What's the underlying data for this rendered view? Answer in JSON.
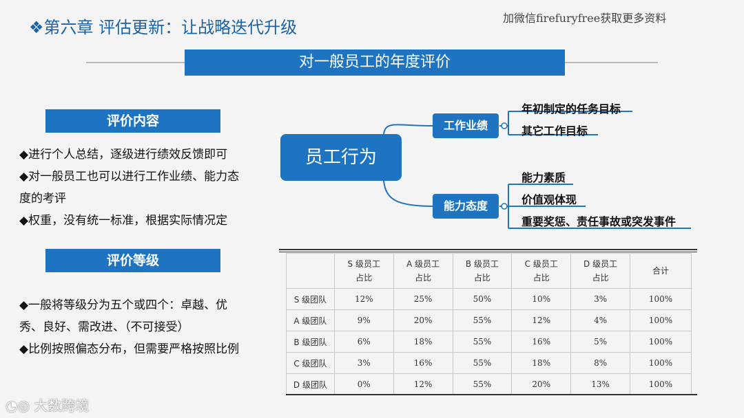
{
  "header": {
    "chapter_title": "❖第六章   评估更新：让战略迭代升级",
    "top_watermark": "加微信firefuryfree获取更多资料"
  },
  "slide_title": "对一般员工的年度评价",
  "content_section": {
    "heading": "评价内容",
    "bullets": [
      "◆进行个人总结，逐级进行绩效反馈即可",
      "◆对一般员工也可以进行工作业绩、能力态度的考评",
      "◆权重，没有统一标准，根据实际情况定"
    ]
  },
  "grade_section": {
    "heading": "评价等级",
    "bullets": [
      "◆一般将等级分为五个或四个：卓越、优秀、良好、需改进、（不可接受）",
      "◆比例按照偏态分布，但需要严格按照比例"
    ]
  },
  "mind_map": {
    "root": "员工行为",
    "branches": [
      {
        "label": "工作业绩",
        "leaves": [
          "年初制定的任务目标",
          "其它工作目标"
        ]
      },
      {
        "label": "能力态度",
        "leaves": [
          "能力素质",
          "价值观体现",
          "重要奖惩、责任事故或突发事件"
        ]
      }
    ]
  },
  "ratio_table": {
    "headers": [
      [
        "",
        ""
      ],
      [
        "S 级员工",
        "占比"
      ],
      [
        "A 级员工",
        "占比"
      ],
      [
        "B 级员工",
        "占比"
      ],
      [
        "C 级员工",
        "占比"
      ],
      [
        "D 级员工",
        "占比"
      ],
      [
        "合计",
        ""
      ]
    ],
    "rows": [
      [
        "S 级团队",
        "12%",
        "25%",
        "50%",
        "10%",
        "3%",
        "100%"
      ],
      [
        "A 级团队",
        "9%",
        "20%",
        "55%",
        "12%",
        "4%",
        "100%"
      ],
      [
        "B 级团队",
        "6%",
        "18%",
        "55%",
        "16%",
        "5%",
        "100%"
      ],
      [
        "C 级团队",
        "3%",
        "16%",
        "55%",
        "18%",
        "8%",
        "100%"
      ],
      [
        "D 级团队",
        "0%",
        "12%",
        "55%",
        "20%",
        "13%",
        "100%"
      ]
    ]
  },
  "footer": {
    "logo_text": "大数跨境"
  },
  "colors": {
    "accent_blue": "#1f74c1",
    "background": "#f4f4f4"
  }
}
